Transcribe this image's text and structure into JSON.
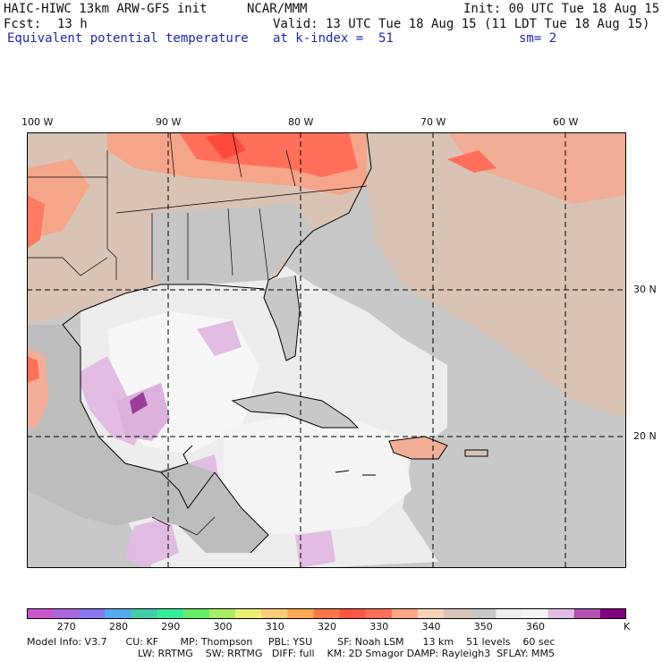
{
  "header": {
    "model_title": "HAIC-HIWC 13km ARW-GFS init",
    "org": "NCAR/MMM",
    "init": "Init: 00 UTC Tue 18 Aug 15",
    "fcst_label": "Fcst:",
    "fcst_value": "13 h",
    "valid": "Valid: 13 UTC Tue 18 Aug 15 (11 LDT Tue 18 Aug 15)",
    "field": "Equivalent potential temperature",
    "level": "at k-index =  51",
    "smoothing": "sm= 2"
  },
  "map": {
    "lon_labels": [
      "100 W",
      "90 W",
      "80 W",
      "70 W",
      "60 W"
    ],
    "lat_labels": [
      "30 N",
      "20 N"
    ],
    "regions": [
      "United States",
      "Mexico",
      "Gulf of Mexico",
      "Florida",
      "Cuba",
      "Hispaniola",
      "Caribbean Sea",
      "Atlantic Ocean",
      "Central America"
    ]
  },
  "colorbar": {
    "colors": [
      "#cc55cc",
      "#aa66dd",
      "#8877ee",
      "#55aaee",
      "#44ccaa",
      "#33ee99",
      "#66ee66",
      "#aaee66",
      "#eeee77",
      "#ffcc77",
      "#ffaa55",
      "#ff7744",
      "#ff5544",
      "#ff6f5a",
      "#ffa888",
      "#f5d2b8",
      "#d8c4b8",
      "#c8c8c8",
      "#eeeeee",
      "#f4f4f4",
      "#e2bce2",
      "#b050b0",
      "#800080"
    ],
    "tick_labels": [
      "270",
      "280",
      "290",
      "300",
      "310",
      "320",
      "330",
      "340",
      "350",
      "360"
    ],
    "unit": "K"
  },
  "model_info": {
    "line1": "Model Info: V3.7      CU: KF       MP: Thompson     PBL: YSU        SF: Noah LSM      13 km    51 levels    60 sec",
    "line2": "LW: RRTMG    SW: RRTMG   DIFF: full    KM: 2D Smagor DAMP: Rayleigh3  SFLAY: MM5"
  }
}
